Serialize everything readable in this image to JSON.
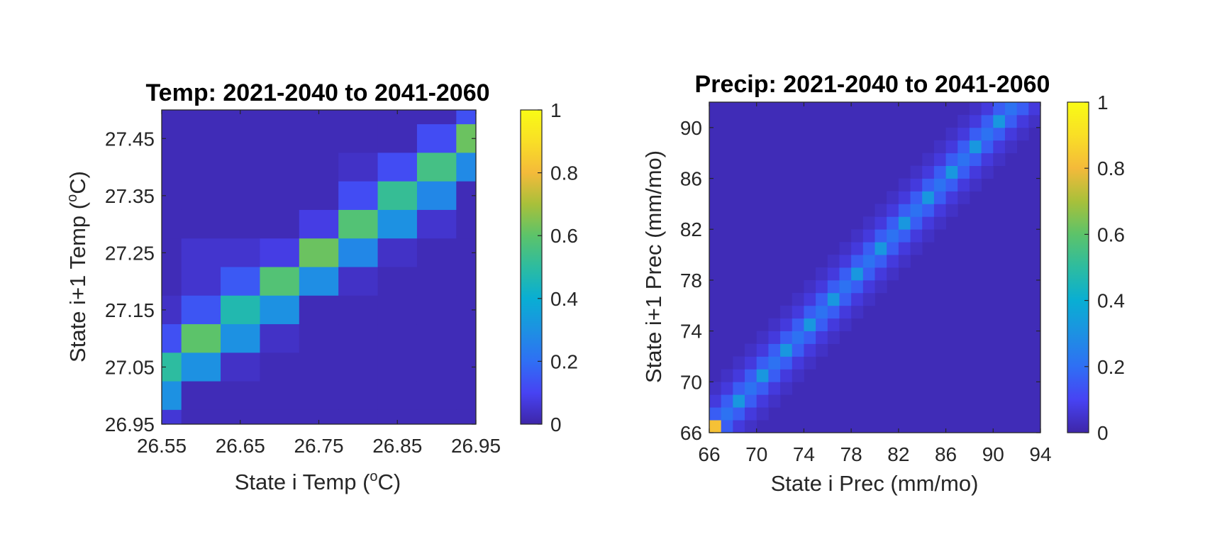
{
  "colormap": "parula",
  "colormap_stops": [
    "#3e26a8",
    "#4743f3",
    "#2f6ff4",
    "#1d91e2",
    "#09aed3",
    "#2dbca0",
    "#5cc36a",
    "#a8c03a",
    "#f4ba3a",
    "#f9df26",
    "#f9fb15"
  ],
  "chart_data": [
    {
      "type": "heatmap",
      "title": "Temp: 2021-2040 to 2041-2060",
      "xlabel": "State i Temp (",
      "xlabel_unit_sup": "o",
      "xlabel_unit_tail": "C)",
      "ylabel": "State i+1 Temp (",
      "ylabel_unit_sup": "o",
      "ylabel_unit_tail": "C)",
      "xlim": [
        26.55,
        26.95
      ],
      "ylim": [
        26.95,
        27.5
      ],
      "xticks": [
        26.55,
        26.65,
        26.75,
        26.85,
        26.95
      ],
      "xtick_labels": [
        "26.55",
        "26.65",
        "26.75",
        "26.85",
        "26.95"
      ],
      "yticks": [
        26.95,
        27.05,
        27.15,
        27.25,
        27.35,
        27.45
      ],
      "ytick_labels": [
        "26.95",
        "27.05",
        "27.15",
        "27.25",
        "27.35",
        "27.45"
      ],
      "x_bin_edges": [
        26.55,
        26.575,
        26.625,
        26.675,
        26.725,
        26.775,
        26.825,
        26.875,
        26.925,
        26.95
      ],
      "y_bin_edges": [
        26.95,
        26.975,
        27.025,
        27.075,
        27.125,
        27.175,
        27.225,
        27.275,
        27.325,
        27.375,
        27.425,
        27.475,
        27.5
      ],
      "values_top_to_bottom": [
        [
          0.02,
          0.02,
          0.02,
          0.02,
          0.02,
          0.02,
          0.02,
          0.02,
          0.13
        ],
        [
          0.02,
          0.02,
          0.02,
          0.02,
          0.02,
          0.02,
          0.02,
          0.12,
          0.62
        ],
        [
          0.02,
          0.02,
          0.02,
          0.02,
          0.02,
          0.04,
          0.12,
          0.55,
          0.28
        ],
        [
          0.02,
          0.02,
          0.02,
          0.02,
          0.02,
          0.12,
          0.52,
          0.27,
          0.02
        ],
        [
          0.02,
          0.02,
          0.02,
          0.02,
          0.08,
          0.58,
          0.3,
          0.05,
          0.02
        ],
        [
          0.02,
          0.05,
          0.05,
          0.08,
          0.62,
          0.27,
          0.04,
          0.02,
          0.02
        ],
        [
          0.02,
          0.05,
          0.15,
          0.58,
          0.29,
          0.04,
          0.02,
          0.02,
          0.02
        ],
        [
          0.04,
          0.14,
          0.47,
          0.3,
          0.02,
          0.02,
          0.02,
          0.02,
          0.02
        ],
        [
          0.13,
          0.6,
          0.3,
          0.04,
          0.02,
          0.02,
          0.02,
          0.02,
          0.02
        ],
        [
          0.5,
          0.3,
          0.04,
          0.02,
          0.02,
          0.02,
          0.02,
          0.02,
          0.02
        ],
        [
          0.3,
          0.02,
          0.02,
          0.02,
          0.02,
          0.02,
          0.02,
          0.02,
          0.02
        ],
        [
          0.06,
          0.02,
          0.02,
          0.02,
          0.02,
          0.02,
          0.02,
          0.02,
          0.02
        ]
      ],
      "colorbar": {
        "clim": [
          0,
          1
        ],
        "ticks": [
          0,
          0.2,
          0.4,
          0.6,
          0.8,
          1
        ],
        "tick_labels": [
          "0",
          "0.2",
          "0.4",
          "0.6",
          "0.8",
          "1"
        ]
      }
    },
    {
      "type": "heatmap",
      "title": "Precip: 2021-2040 to 2041-2060",
      "xlabel": "State i Prec (mm/mo)",
      "ylabel": "State i+1 Prec (mm/mo)",
      "xlim": [
        66,
        94
      ],
      "ylim": [
        66,
        92
      ],
      "xticks": [
        66,
        70,
        74,
        78,
        82,
        86,
        90,
        94
      ],
      "xtick_labels": [
        "66",
        "70",
        "74",
        "78",
        "82",
        "86",
        "90",
        "94"
      ],
      "yticks": [
        66,
        70,
        74,
        78,
        82,
        86,
        90
      ],
      "ytick_labels": [
        "66",
        "70",
        "74",
        "78",
        "82",
        "86",
        "90"
      ],
      "bin_width": 1,
      "pattern": "transition matrix concentrated along the diagonal, checkerboard of ~0.3 and ~0.15 cells near the diagonal, near zero elsewhere",
      "diagonal_peak": 0.32,
      "off_diagonal_1": 0.16,
      "off_diagonal_2": 0.07,
      "background": 0.02,
      "corner_cell_value": 0.82,
      "colorbar": {
        "clim": [
          0,
          1
        ],
        "ticks": [
          0,
          0.2,
          0.4,
          0.6,
          0.8,
          1
        ],
        "tick_labels": [
          "0",
          "0.2",
          "0.4",
          "0.6",
          "0.8",
          "1"
        ]
      }
    }
  ]
}
